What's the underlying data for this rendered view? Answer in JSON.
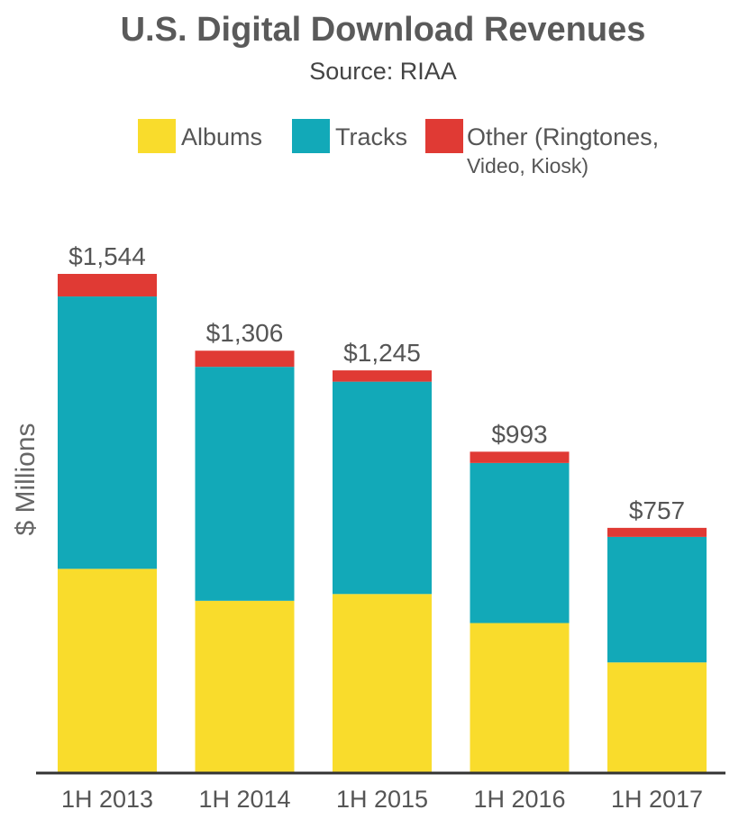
{
  "chart_data": {
    "type": "bar",
    "stacked": true,
    "title": "U.S. Digital Download Revenues",
    "subtitle": "Source: RIAA",
    "ylabel": "$ Millions",
    "xlabel": "",
    "ylim": [
      0,
      1544
    ],
    "grid": false,
    "legend_position": "top",
    "categories": [
      "1H 2013",
      "1H 2014",
      "1H 2015",
      "1H 2016",
      "1H 2017"
    ],
    "totals": [
      1544,
      1306,
      1245,
      993,
      757
    ],
    "total_labels": [
      "$1,544",
      "$1,306",
      "$1,245",
      "$993",
      "$757"
    ],
    "series": [
      {
        "name": "Albums",
        "color": "#F9DC2C",
        "values": [
          630,
          531,
          552,
          462,
          340
        ]
      },
      {
        "name": "Tracks",
        "color": "#12A9B8",
        "values": [
          844,
          725,
          658,
          496,
          389
        ]
      },
      {
        "name": "Other",
        "legend_label_line1": "Other (Ringtones,",
        "legend_label_line2": "Video, Kiosk)",
        "color": "#E03A34",
        "values": [
          70,
          50,
          35,
          35,
          28
        ]
      }
    ]
  }
}
